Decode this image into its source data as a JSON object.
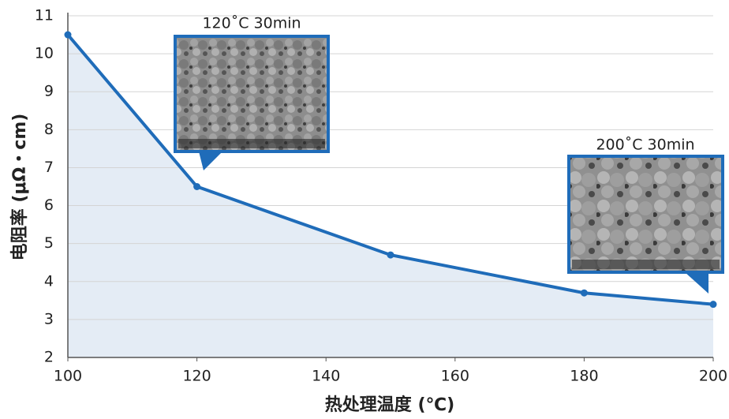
{
  "chart_data": {
    "type": "line",
    "x_label": "热处理温度 (℃)",
    "y_label": "电阻率 (μΩ・cm)",
    "x": [
      100,
      120,
      150,
      180,
      200
    ],
    "values": [
      10.5,
      6.5,
      4.7,
      3.7,
      3.4
    ],
    "color": "#1f6cb9",
    "area_color": "#e4ecf5",
    "xlim": [
      100,
      200
    ],
    "xticks": [
      100,
      120,
      140,
      160,
      180,
      200
    ],
    "ylim": [
      2,
      11
    ],
    "yticks": [
      2,
      3,
      4,
      5,
      6,
      7,
      8,
      9,
      10,
      11
    ],
    "grid": true,
    "annotations": [
      "120˚C 30min",
      "200˚C 30min"
    ]
  }
}
